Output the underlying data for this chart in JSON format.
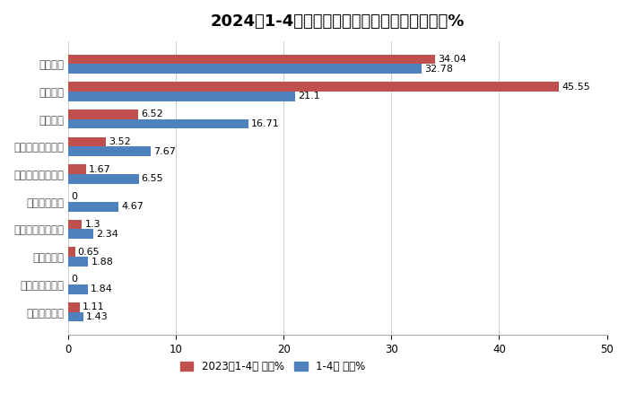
{
  "title": "2024年1-4月新能源搅拌车占比及去年同期占比%",
  "categories": [
    "广州穗景客车",
    "河南犀重新能源",
    "福田戴姆勒",
    "洛阳中集凌宇汽车",
    "中国重汽集团",
    "芜湖中集瑞江汽车",
    "远程新能源商用车",
    "中联重科",
    "三一汽车",
    "徐工重卡"
  ],
  "values_2023": [
    1.11,
    0,
    0.65,
    1.3,
    0,
    1.67,
    3.52,
    6.52,
    45.55,
    34.04
  ],
  "values_2024": [
    1.43,
    1.84,
    1.88,
    2.34,
    4.67,
    6.55,
    7.67,
    16.71,
    21.1,
    32.78
  ],
  "color_2023": "#c0504d",
  "color_2024": "#4f81bd",
  "legend_2023": "2023年1-4月 占比%",
  "legend_2024": "1-4月 占比%",
  "xlim": [
    0,
    50
  ],
  "xticks": [
    0,
    10,
    20,
    30,
    40,
    50
  ],
  "bar_height": 0.35,
  "background_color": "#ffffff",
  "label_fontsize": 8,
  "title_fontsize": 13,
  "tick_fontsize": 8.5
}
